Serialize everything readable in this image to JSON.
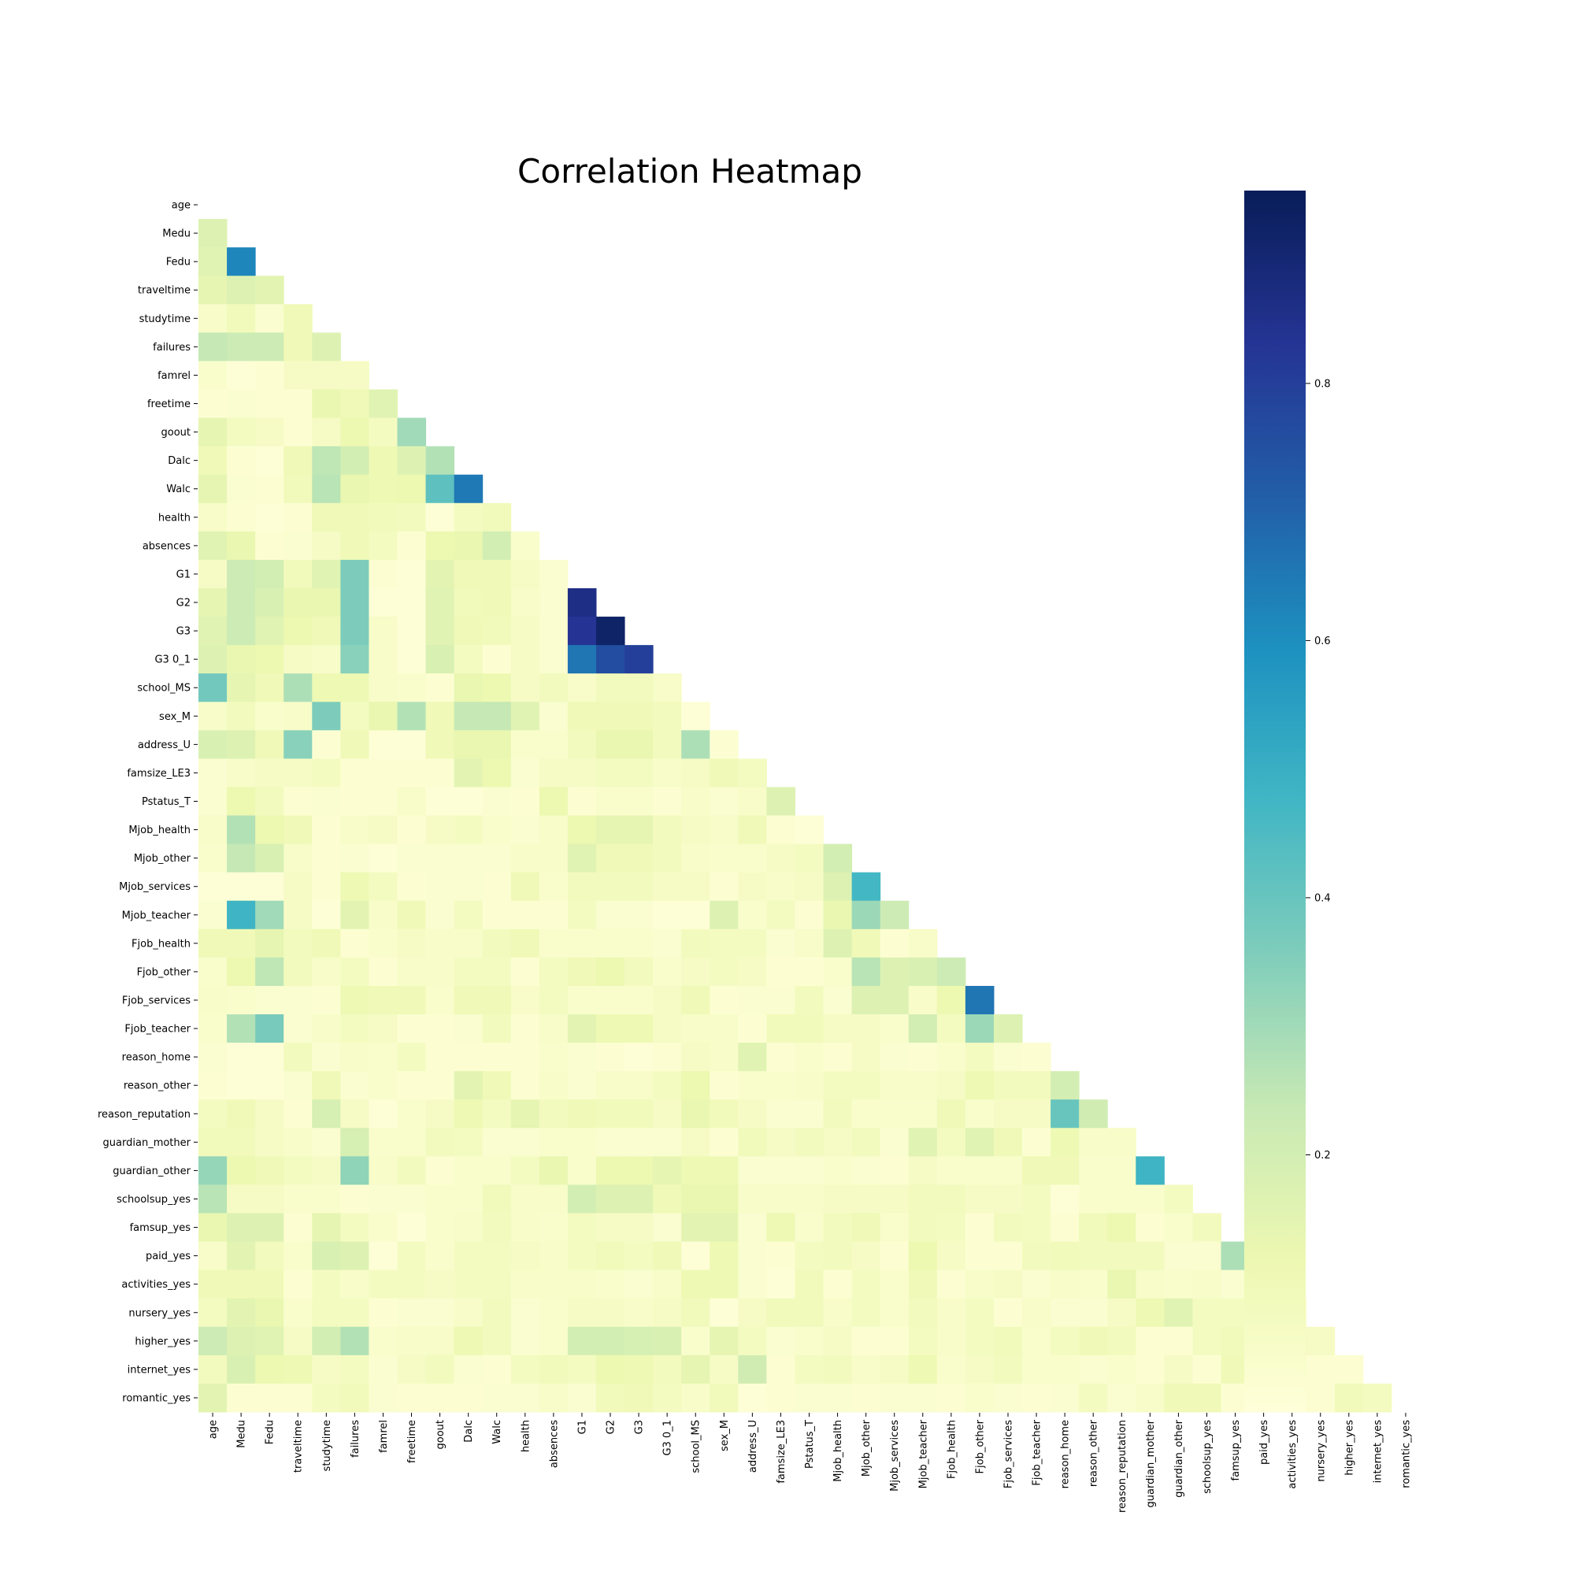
{
  "chart_data": {
    "type": "heatmap",
    "title": "Correlation Heatmap",
    "mask": "upper-triangle-including-diagonal",
    "colormap": "YlGnBu",
    "labels": [
      "age",
      "Medu",
      "Fedu",
      "traveltime",
      "studytime",
      "failures",
      "famrel",
      "freetime",
      "goout",
      "Dalc",
      "Walc",
      "health",
      "absences",
      "G1",
      "G2",
      "G3",
      "G3 0_1",
      "school_MS",
      "sex_M",
      "address_U",
      "famsize_LE3",
      "Pstatus_T",
      "Mjob_health",
      "Mjob_other",
      "Mjob_services",
      "Mjob_teacher",
      "Fjob_health",
      "Fjob_other",
      "Fjob_services",
      "Fjob_teacher",
      "reason_home",
      "reason_other",
      "reason_reputation",
      "guardian_mother",
      "guardian_other",
      "schoolsup_yes",
      "famsup_yes",
      "paid_yes",
      "activities_yes",
      "nursery_yes",
      "higher_yes",
      "internet_yes",
      "romantic_yes"
    ],
    "colorbar": {
      "min": 0,
      "max": 0.95,
      "ticks": [
        0.2,
        0.4,
        0.6,
        0.8
      ]
    },
    "lower_triangle_rows": [
      [],
      [
        0.17
      ],
      [
        0.16,
        0.62
      ],
      [
        0.14,
        0.17,
        0.15
      ],
      [
        0.05,
        0.09,
        0.03,
        0.1
      ],
      [
        0.24,
        0.22,
        0.22,
        0.1,
        0.17
      ],
      [
        0.04,
        0.01,
        0.02,
        0.06,
        0.06,
        0.06
      ],
      [
        0.02,
        0.03,
        0.02,
        0.02,
        0.13,
        0.1,
        0.16
      ],
      [
        0.14,
        0.07,
        0.06,
        0.02,
        0.06,
        0.12,
        0.07,
        0.3
      ],
      [
        0.1,
        0.02,
        0.01,
        0.1,
        0.25,
        0.2,
        0.11,
        0.17,
        0.27
      ],
      [
        0.14,
        0.03,
        0.02,
        0.09,
        0.26,
        0.13,
        0.11,
        0.12,
        0.42,
        0.65
      ],
      [
        0.05,
        0.02,
        0.01,
        0.02,
        0.1,
        0.1,
        0.09,
        0.08,
        0.01,
        0.07,
        0.09
      ],
      [
        0.16,
        0.13,
        0.02,
        0.03,
        0.06,
        0.1,
        0.07,
        0.02,
        0.12,
        0.13,
        0.2,
        0.04
      ],
      [
        0.06,
        0.22,
        0.2,
        0.09,
        0.16,
        0.36,
        0.02,
        0.01,
        0.15,
        0.1,
        0.1,
        0.06,
        0.03
      ],
      [
        0.14,
        0.22,
        0.18,
        0.13,
        0.13,
        0.36,
        0.01,
        0.01,
        0.16,
        0.09,
        0.1,
        0.05,
        0.03,
        0.86
      ],
      [
        0.16,
        0.22,
        0.16,
        0.12,
        0.1,
        0.36,
        0.05,
        0.01,
        0.16,
        0.1,
        0.09,
        0.06,
        0.03,
        0.83,
        0.92
      ],
      [
        0.17,
        0.13,
        0.12,
        0.06,
        0.05,
        0.34,
        0.05,
        0.01,
        0.18,
        0.07,
        0.02,
        0.06,
        0.03,
        0.66,
        0.76,
        0.8
      ],
      [
        0.38,
        0.14,
        0.1,
        0.28,
        0.11,
        0.11,
        0.05,
        0.04,
        0.02,
        0.13,
        0.12,
        0.06,
        0.08,
        0.05,
        0.08,
        0.08,
        0.05
      ],
      [
        0.05,
        0.08,
        0.04,
        0.05,
        0.36,
        0.07,
        0.13,
        0.27,
        0.1,
        0.24,
        0.24,
        0.16,
        0.03,
        0.1,
        0.1,
        0.1,
        0.08,
        0.01
      ],
      [
        0.18,
        0.17,
        0.1,
        0.34,
        0.02,
        0.1,
        0.01,
        0.01,
        0.1,
        0.13,
        0.13,
        0.04,
        0.04,
        0.08,
        0.13,
        0.13,
        0.08,
        0.28,
        0.02
      ],
      [
        0.03,
        0.05,
        0.06,
        0.06,
        0.07,
        0.02,
        0.02,
        0.02,
        0.02,
        0.15,
        0.12,
        0.03,
        0.06,
        0.06,
        0.07,
        0.07,
        0.05,
        0.06,
        0.1,
        0.07
      ],
      [
        0.03,
        0.12,
        0.08,
        0.02,
        0.03,
        0.02,
        0.02,
        0.05,
        0.01,
        0.01,
        0.03,
        0.02,
        0.12,
        0.02,
        0.04,
        0.04,
        0.02,
        0.05,
        0.03,
        0.05,
        0.17
      ],
      [
        0.05,
        0.27,
        0.12,
        0.1,
        0.02,
        0.05,
        0.06,
        0.02,
        0.06,
        0.07,
        0.04,
        0.03,
        0.05,
        0.12,
        0.14,
        0.14,
        0.08,
        0.06,
        0.05,
        0.1,
        0.02,
        0.01
      ],
      [
        0.04,
        0.24,
        0.18,
        0.05,
        0.02,
        0.03,
        0.01,
        0.03,
        0.03,
        0.03,
        0.03,
        0.05,
        0.05,
        0.16,
        0.1,
        0.1,
        0.08,
        0.05,
        0.04,
        0.04,
        0.06,
        0.07,
        0.2
      ],
      [
        0.01,
        0.01,
        0.01,
        0.06,
        0.02,
        0.11,
        0.07,
        0.02,
        0.03,
        0.03,
        0.02,
        0.1,
        0.04,
        0.08,
        0.08,
        0.08,
        0.06,
        0.06,
        0.02,
        0.06,
        0.05,
        0.06,
        0.17,
        0.47
      ],
      [
        0.03,
        0.48,
        0.3,
        0.06,
        0.01,
        0.15,
        0.05,
        0.1,
        0.03,
        0.07,
        0.02,
        0.02,
        0.02,
        0.07,
        0.03,
        0.03,
        0.01,
        0.01,
        0.17,
        0.04,
        0.07,
        0.02,
        0.13,
        0.31,
        0.22
      ],
      [
        0.1,
        0.1,
        0.14,
        0.08,
        0.1,
        0.02,
        0.04,
        0.06,
        0.05,
        0.05,
        0.08,
        0.1,
        0.04,
        0.04,
        0.04,
        0.04,
        0.03,
        0.08,
        0.07,
        0.07,
        0.03,
        0.05,
        0.17,
        0.1,
        0.02,
        0.05
      ],
      [
        0.04,
        0.12,
        0.25,
        0.08,
        0.05,
        0.07,
        0.02,
        0.05,
        0.05,
        0.07,
        0.07,
        0.02,
        0.07,
        0.1,
        0.12,
        0.08,
        0.04,
        0.06,
        0.07,
        0.06,
        0.02,
        0.02,
        0.04,
        0.26,
        0.17,
        0.18,
        0.22
      ],
      [
        0.05,
        0.04,
        0.03,
        0.03,
        0.02,
        0.11,
        0.1,
        0.1,
        0.04,
        0.1,
        0.1,
        0.05,
        0.07,
        0.04,
        0.04,
        0.04,
        0.06,
        0.1,
        0.02,
        0.03,
        0.03,
        0.08,
        0.03,
        0.17,
        0.17,
        0.05,
        0.12,
        0.66
      ],
      [
        0.04,
        0.27,
        0.37,
        0.03,
        0.05,
        0.07,
        0.06,
        0.02,
        0.02,
        0.03,
        0.08,
        0.02,
        0.05,
        0.15,
        0.11,
        0.11,
        0.06,
        0.05,
        0.05,
        0.02,
        0.09,
        0.09,
        0.06,
        0.06,
        0.04,
        0.2,
        0.07,
        0.31,
        0.17
      ],
      [
        0.03,
        0.01,
        0.01,
        0.08,
        0.03,
        0.05,
        0.04,
        0.07,
        0.02,
        0.02,
        0.02,
        0.02,
        0.04,
        0.03,
        0.02,
        0.01,
        0.02,
        0.06,
        0.05,
        0.16,
        0.02,
        0.04,
        0.02,
        0.06,
        0.03,
        0.02,
        0.04,
        0.07,
        0.03,
        0.02
      ],
      [
        0.02,
        0.01,
        0.01,
        0.03,
        0.1,
        0.03,
        0.04,
        0.02,
        0.02,
        0.15,
        0.1,
        0.02,
        0.05,
        0.03,
        0.05,
        0.05,
        0.07,
        0.12,
        0.02,
        0.04,
        0.04,
        0.05,
        0.07,
        0.07,
        0.05,
        0.05,
        0.06,
        0.11,
        0.08,
        0.08,
        0.2
      ],
      [
        0.07,
        0.1,
        0.06,
        0.02,
        0.19,
        0.06,
        0.01,
        0.04,
        0.06,
        0.11,
        0.07,
        0.14,
        0.08,
        0.1,
        0.09,
        0.09,
        0.06,
        0.13,
        0.09,
        0.06,
        0.03,
        0.03,
        0.08,
        0.04,
        0.04,
        0.04,
        0.1,
        0.04,
        0.06,
        0.06,
        0.4,
        0.21
      ],
      [
        0.09,
        0.09,
        0.06,
        0.05,
        0.03,
        0.19,
        0.04,
        0.04,
        0.08,
        0.07,
        0.03,
        0.03,
        0.04,
        0.04,
        0.03,
        0.03,
        0.03,
        0.06,
        0.02,
        0.09,
        0.06,
        0.08,
        0.06,
        0.08,
        0.03,
        0.16,
        0.07,
        0.16,
        0.1,
        0.02,
        0.11,
        0.05,
        0.05
      ],
      [
        0.32,
        0.12,
        0.1,
        0.07,
        0.06,
        0.33,
        0.05,
        0.08,
        0.02,
        0.04,
        0.04,
        0.07,
        0.13,
        0.04,
        0.12,
        0.12,
        0.14,
        0.11,
        0.11,
        0.03,
        0.03,
        0.03,
        0.04,
        0.03,
        0.02,
        0.06,
        0.04,
        0.04,
        0.04,
        0.1,
        0.1,
        0.04,
        0.04,
        0.48
      ],
      [
        0.26,
        0.06,
        0.06,
        0.04,
        0.04,
        0.02,
        0.03,
        0.03,
        0.04,
        0.04,
        0.09,
        0.05,
        0.05,
        0.2,
        0.17,
        0.17,
        0.1,
        0.13,
        0.13,
        0.05,
        0.05,
        0.05,
        0.06,
        0.06,
        0.06,
        0.08,
        0.08,
        0.06,
        0.06,
        0.07,
        0.01,
        0.04,
        0.04,
        0.04,
        0.07
      ],
      [
        0.13,
        0.17,
        0.17,
        0.02,
        0.14,
        0.07,
        0.04,
        0.01,
        0.04,
        0.05,
        0.08,
        0.05,
        0.04,
        0.07,
        0.06,
        0.06,
        0.03,
        0.15,
        0.15,
        0.03,
        0.11,
        0.04,
        0.08,
        0.1,
        0.04,
        0.08,
        0.07,
        0.02,
        0.08,
        0.07,
        0.02,
        0.09,
        0.12,
        0.02,
        0.04,
        0.08
      ],
      [
        0.05,
        0.15,
        0.08,
        0.04,
        0.18,
        0.17,
        0.01,
        0.07,
        0.04,
        0.07,
        0.07,
        0.06,
        0.05,
        0.07,
        0.09,
        0.07,
        0.1,
        0.01,
        0.11,
        0.03,
        0.02,
        0.07,
        0.08,
        0.06,
        0.02,
        0.12,
        0.06,
        0.02,
        0.02,
        0.08,
        0.09,
        0.08,
        0.08,
        0.08,
        0.03,
        0.03,
        0.28
      ],
      [
        0.1,
        0.1,
        0.1,
        0.02,
        0.07,
        0.05,
        0.07,
        0.07,
        0.06,
        0.07,
        0.07,
        0.05,
        0.05,
        0.05,
        0.04,
        0.03,
        0.05,
        0.11,
        0.11,
        0.03,
        0.01,
        0.09,
        0.02,
        0.07,
        0.04,
        0.1,
        0.02,
        0.05,
        0.06,
        0.03,
        0.05,
        0.04,
        0.13,
        0.05,
        0.04,
        0.05,
        0.03,
        0.02
      ],
      [
        0.07,
        0.15,
        0.13,
        0.04,
        0.07,
        0.07,
        0.02,
        0.03,
        0.03,
        0.05,
        0.08,
        0.03,
        0.04,
        0.06,
        0.06,
        0.05,
        0.06,
        0.09,
        0.01,
        0.06,
        0.09,
        0.09,
        0.05,
        0.07,
        0.04,
        0.08,
        0.05,
        0.07,
        0.02,
        0.05,
        0.03,
        0.03,
        0.06,
        0.11,
        0.16,
        0.07,
        0.07,
        0.11,
        0.02
      ],
      [
        0.22,
        0.17,
        0.16,
        0.06,
        0.2,
        0.27,
        0.04,
        0.05,
        0.05,
        0.11,
        0.08,
        0.03,
        0.04,
        0.2,
        0.2,
        0.19,
        0.18,
        0.04,
        0.14,
        0.07,
        0.03,
        0.04,
        0.06,
        0.02,
        0.02,
        0.07,
        0.05,
        0.07,
        0.09,
        0.04,
        0.07,
        0.1,
        0.08,
        0.02,
        0.02,
        0.07,
        0.09,
        0.18,
        0.09,
        0.06
      ],
      [
        0.08,
        0.18,
        0.12,
        0.11,
        0.06,
        0.07,
        0.03,
        0.06,
        0.08,
        0.03,
        0.02,
        0.07,
        0.09,
        0.07,
        0.12,
        0.11,
        0.08,
        0.14,
        0.06,
        0.21,
        0.02,
        0.07,
        0.08,
        0.05,
        0.06,
        0.11,
        0.04,
        0.06,
        0.08,
        0.04,
        0.04,
        0.03,
        0.04,
        0.02,
        0.06,
        0.02,
        0.1,
        0.15,
        0.06,
        0.02,
        0.02
      ],
      [
        0.15,
        0.02,
        0.02,
        0.02,
        0.07,
        0.09,
        0.03,
        0.02,
        0.02,
        0.02,
        0.03,
        0.03,
        0.05,
        0.03,
        0.09,
        0.1,
        0.07,
        0.05,
        0.09,
        0.01,
        0.02,
        0.03,
        0.03,
        0.02,
        0.03,
        0.03,
        0.02,
        0.04,
        0.03,
        0.02,
        0.03,
        0.07,
        0.03,
        0.05,
        0.1,
        0.1,
        0.02,
        0.02,
        0.02,
        0.02,
        0.09,
        0.07
      ]
    ]
  }
}
